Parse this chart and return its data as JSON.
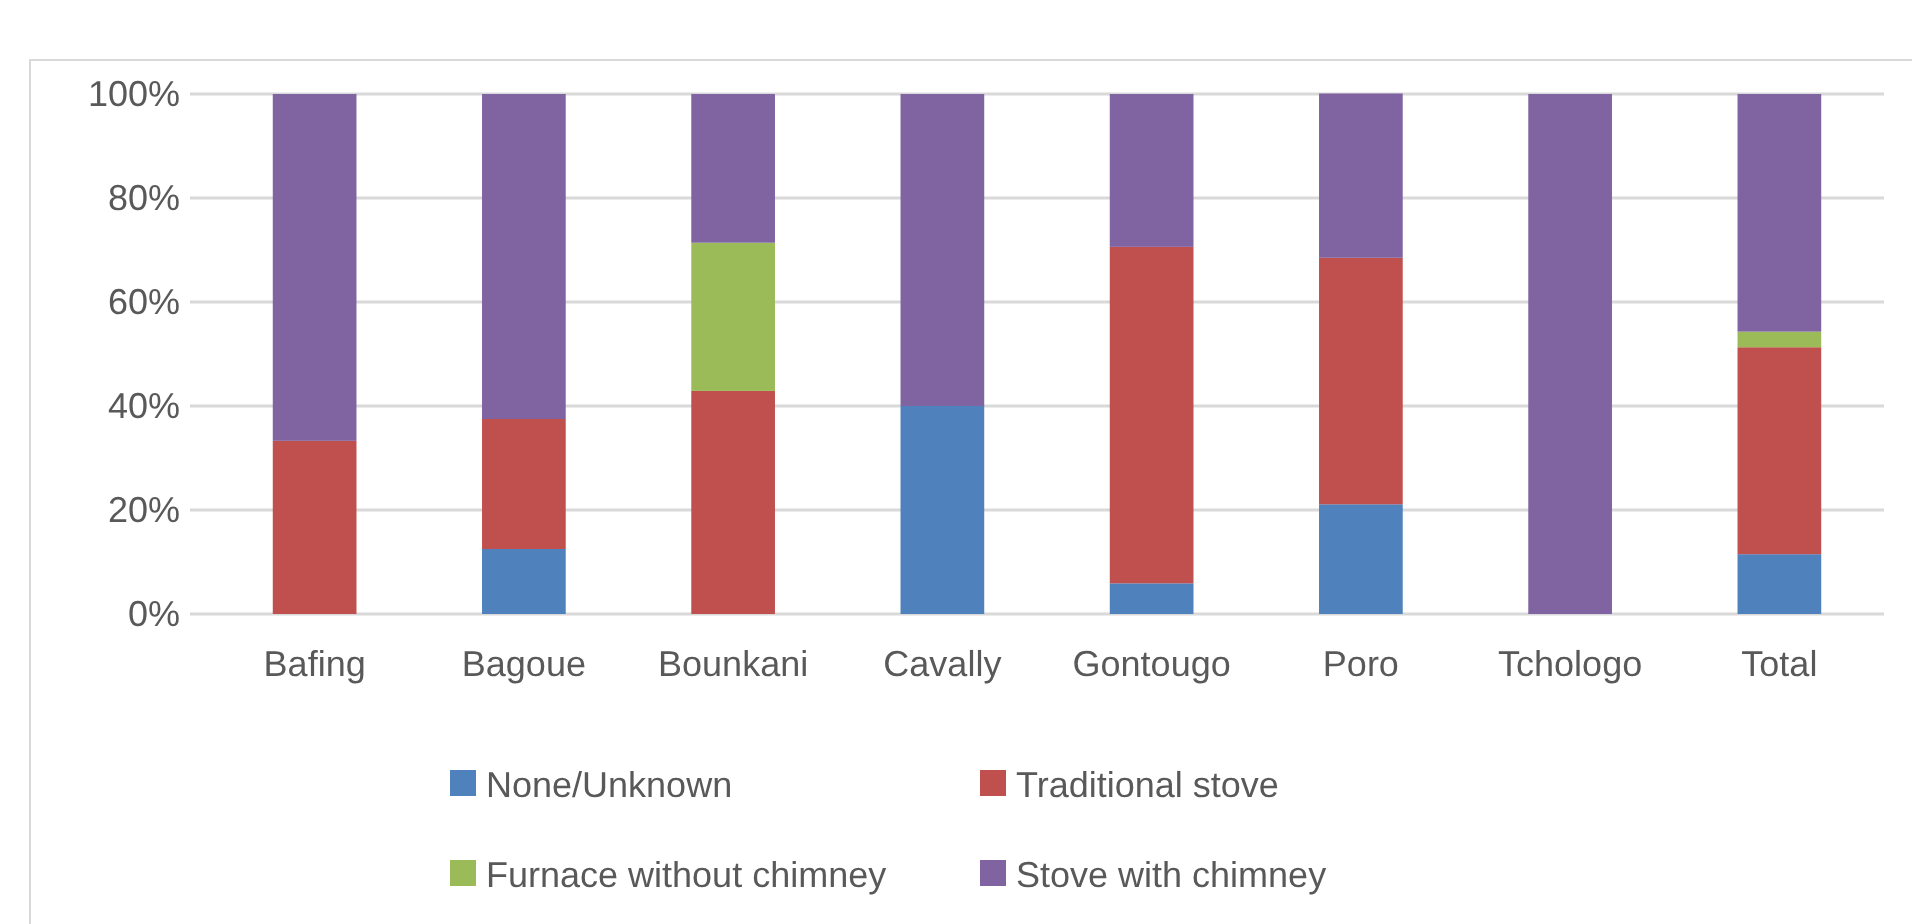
{
  "chart_data": {
    "type": "bar",
    "stacked": true,
    "categories": [
      "Bafing",
      "Bagoue",
      "Bounkani",
      "Cavally",
      "Gontougo",
      "Poro",
      "Tchologo",
      "Total"
    ],
    "series": [
      {
        "name": "None/Unknown",
        "color": "#4f81bd",
        "values": [
          0,
          12.5,
          0,
          40,
          5.9,
          21.1,
          0,
          11.5
        ]
      },
      {
        "name": "Traditional stove",
        "color": "#c0504d",
        "values": [
          33.3,
          25,
          42.9,
          0,
          64.7,
          47.4,
          0,
          39.8
        ]
      },
      {
        "name": "Furnace without chimney",
        "color": "#9bbb59",
        "values": [
          0,
          0,
          28.5,
          0,
          0,
          0,
          0,
          3.0
        ]
      },
      {
        "name": "Stove with chimney",
        "color": "#8064a2",
        "values": [
          66.7,
          62.5,
          28.6,
          60,
          29.4,
          31.6,
          100,
          45.7
        ]
      }
    ],
    "ylim": [
      0,
      100
    ],
    "yticks": [
      {
        "value": 0,
        "label": "0%"
      },
      {
        "value": 20,
        "label": "20%"
      },
      {
        "value": 40,
        "label": "40%"
      },
      {
        "value": 60,
        "label": "60%"
      },
      {
        "value": 80,
        "label": "80%"
      },
      {
        "value": 100,
        "label": "100%"
      }
    ],
    "grid": "y",
    "legend": "bottom"
  }
}
